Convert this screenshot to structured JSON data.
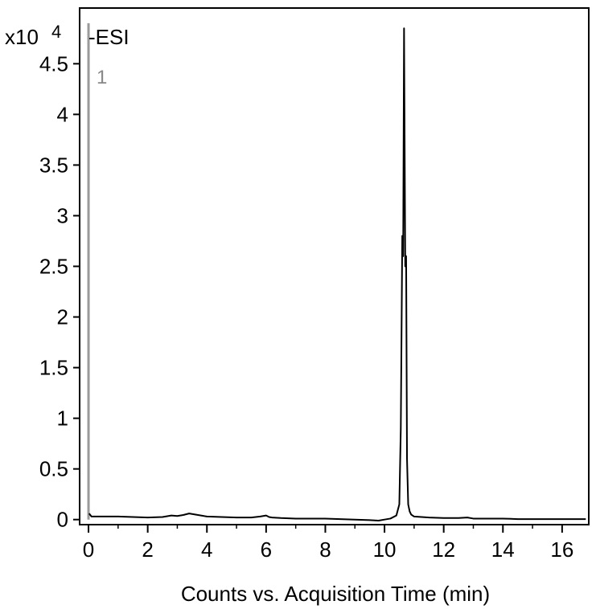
{
  "colors": {
    "trace": "#000000",
    "marker": "#9a9a9a",
    "frame": "#000000",
    "background": "#ffffff"
  },
  "chart_data": {
    "type": "line",
    "ion_mode": "-ESI",
    "trace_id": "1",
    "y_multiplier": "x10",
    "y_exponent": "4",
    "xlabel": "Counts vs. Acquisition Time (min)",
    "ylabel": "",
    "xlim": [
      -0.3,
      16.9
    ],
    "ylim": [
      -0.05,
      5.05
    ],
    "x_ticks": [
      0,
      2,
      4,
      6,
      8,
      10,
      12,
      14,
      16
    ],
    "x_tick_labels": [
      "0",
      "2",
      "4",
      "6",
      "8",
      "10",
      "12",
      "14",
      "16"
    ],
    "y_ticks": [
      0,
      0.5,
      1,
      1.5,
      2,
      2.5,
      3,
      3.5,
      4,
      4.5
    ],
    "y_tick_labels": [
      "0",
      "0.5",
      "1",
      "1.5",
      "2",
      "2.5",
      "3",
      "3.5",
      "4",
      "4.5"
    ],
    "grid": false,
    "legend": "none",
    "marker_x": 0,
    "marker_top": 4.9,
    "series": [
      {
        "x": [
          0.02,
          0.1,
          0.5,
          1.0,
          1.5,
          2.0,
          2.5,
          2.8,
          3.0,
          3.2,
          3.4,
          3.6,
          3.8,
          4.0,
          4.5,
          5.0,
          5.5,
          5.8,
          6.0,
          6.1,
          6.2,
          6.5,
          7.0,
          7.5,
          8.0,
          8.5,
          9.0,
          9.5,
          9.8,
          10.0,
          10.2,
          10.4,
          10.5,
          10.55,
          10.6,
          10.63,
          10.66,
          10.7,
          10.73,
          10.76,
          10.8,
          10.85,
          10.9,
          11.0,
          11.5,
          12.0,
          12.5,
          12.8,
          13.0,
          13.5,
          14.0,
          14.5,
          15.0,
          15.5,
          16.0,
          16.5,
          16.8
        ],
        "y": [
          0.06,
          0.03,
          0.03,
          0.03,
          0.025,
          0.02,
          0.025,
          0.04,
          0.035,
          0.045,
          0.06,
          0.05,
          0.04,
          0.03,
          0.025,
          0.02,
          0.02,
          0.03,
          0.04,
          0.025,
          0.02,
          0.015,
          0.01,
          0.01,
          0.01,
          0.005,
          0.0,
          -0.005,
          -0.01,
          0.0,
          0.01,
          0.04,
          0.15,
          0.9,
          2.8,
          2.6,
          4.85,
          2.5,
          2.6,
          0.6,
          0.15,
          0.08,
          0.05,
          0.03,
          0.02,
          0.015,
          0.015,
          0.02,
          0.01,
          0.01,
          0.01,
          0.005,
          0.005,
          0.005,
          0.005,
          0.005,
          0.005
        ]
      }
    ]
  }
}
